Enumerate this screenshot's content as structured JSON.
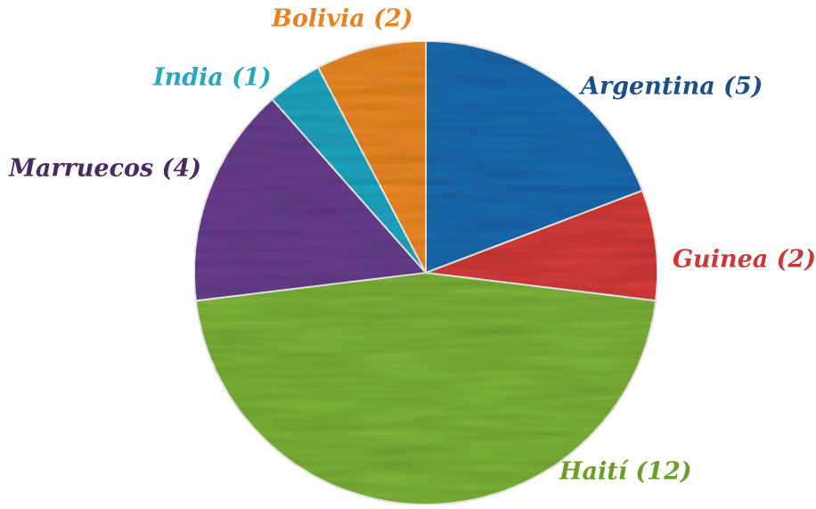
{
  "chart_data": {
    "type": "pie",
    "labels": [
      "Argentina (5)",
      "Guinea (2)",
      "Haití (12)",
      "Marruecos (4)",
      "India (1)",
      "Bolivia (2)"
    ],
    "values": [
      5,
      2,
      12,
      4,
      1,
      2
    ],
    "colors": [
      "#1f6db3",
      "#d83c3a",
      "#80b63b",
      "#6b3f91",
      "#20a8c4",
      "#f08a26"
    ],
    "label_colors": [
      "#1b4f89",
      "#c83a38",
      "#6b9d2b",
      "#4a2a61",
      "#2aa6bf",
      "#e8811f"
    ]
  }
}
